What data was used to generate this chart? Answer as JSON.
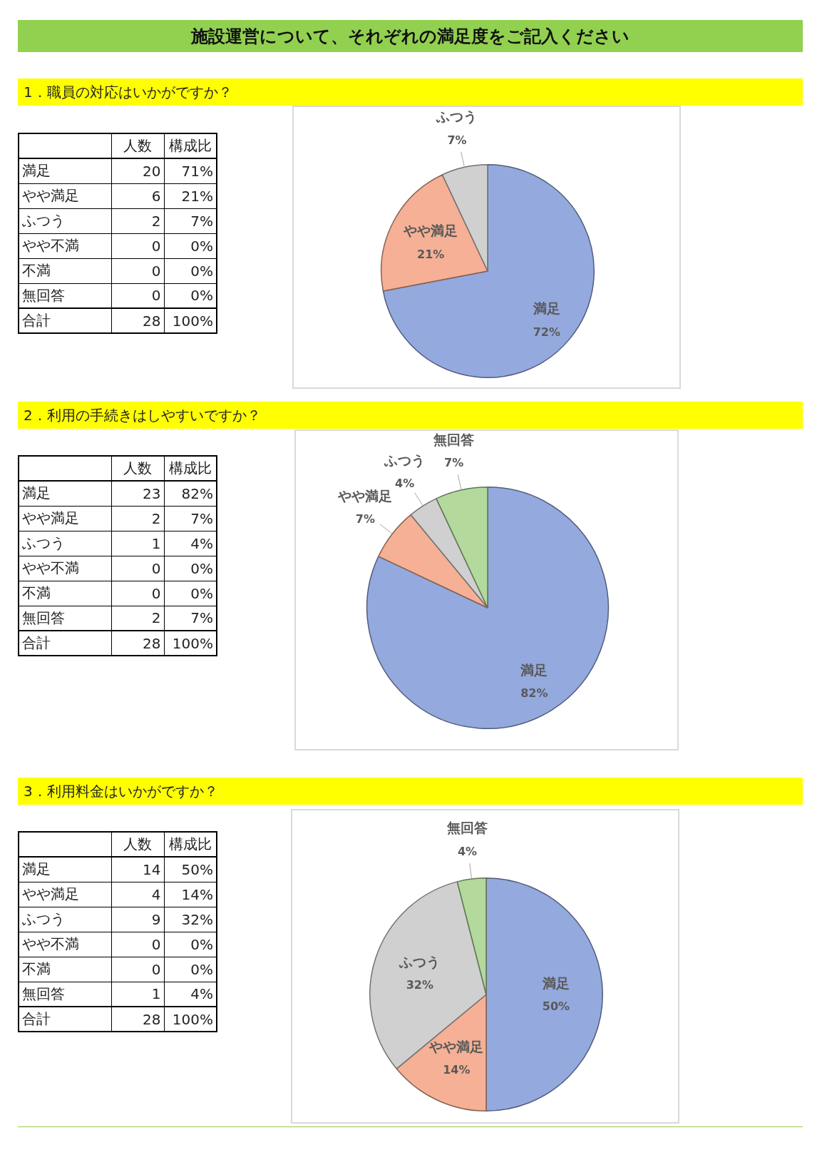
{
  "chart_data": [
    {
      "type": "other",
      "title": "施設運営について、それぞれの満足度をご記入ください"
    },
    {
      "type": "pie",
      "title": "1．職員の対応はいかがですか？",
      "categories": [
        "満足",
        "やや満足",
        "ふつう",
        "やや不満",
        "不満",
        "無回答"
      ],
      "values": [
        72,
        21,
        7,
        0,
        0,
        0
      ],
      "colors": [
        "#94a9de",
        "#f5b095",
        "#d0d0d0",
        null,
        null,
        null
      ],
      "value_labels": [
        "72%",
        "21%",
        "7%",
        null,
        null,
        null
      ],
      "annotations": [
        "人数",
        "構成比",
        "合計",
        "28",
        "100%",
        "20",
        "6",
        "2",
        "0",
        "0",
        "0",
        "71%",
        "21%",
        "7%",
        "0%",
        "0%",
        "0%"
      ]
    },
    {
      "type": "pie",
      "title": "2．利用の手続きはしやすいですか？",
      "categories": [
        "満足",
        "やや満足",
        "ふつう",
        "やや不満",
        "不満",
        "無回答"
      ],
      "values": [
        82,
        7,
        4,
        0,
        0,
        7
      ],
      "colors": [
        "#94a9de",
        "#f5b095",
        "#d0d0d0",
        null,
        null,
        "#b3d99c"
      ],
      "value_labels": [
        "82%",
        "7%",
        "4%",
        null,
        null,
        "7%"
      ],
      "annotations": [
        "人数",
        "構成比",
        "合計",
        "28",
        "100%",
        "23",
        "2",
        "1",
        "0",
        "0",
        "2",
        "82%",
        "7%",
        "4%",
        "0%",
        "0%",
        "7%"
      ]
    },
    {
      "type": "pie",
      "title": "3．利用料金はいかがですか？",
      "categories": [
        "満足",
        "やや満足",
        "ふつう",
        "やや不満",
        "不満",
        "無回答"
      ],
      "values": [
        50,
        14,
        32,
        0,
        0,
        4
      ],
      "colors": [
        "#94a9de",
        "#f5b095",
        "#d0d0d0",
        null,
        null,
        "#b3d99c"
      ],
      "value_labels": [
        "50%",
        "14%",
        "32%",
        null,
        null,
        "4%"
      ],
      "annotations": [
        "人数",
        "構成比",
        "合計",
        "28",
        "100%",
        "14",
        "4",
        "9",
        "0",
        "0",
        "1",
        "50%",
        "14%",
        "32%",
        "0%",
        "0%",
        "4%"
      ]
    }
  ]
}
